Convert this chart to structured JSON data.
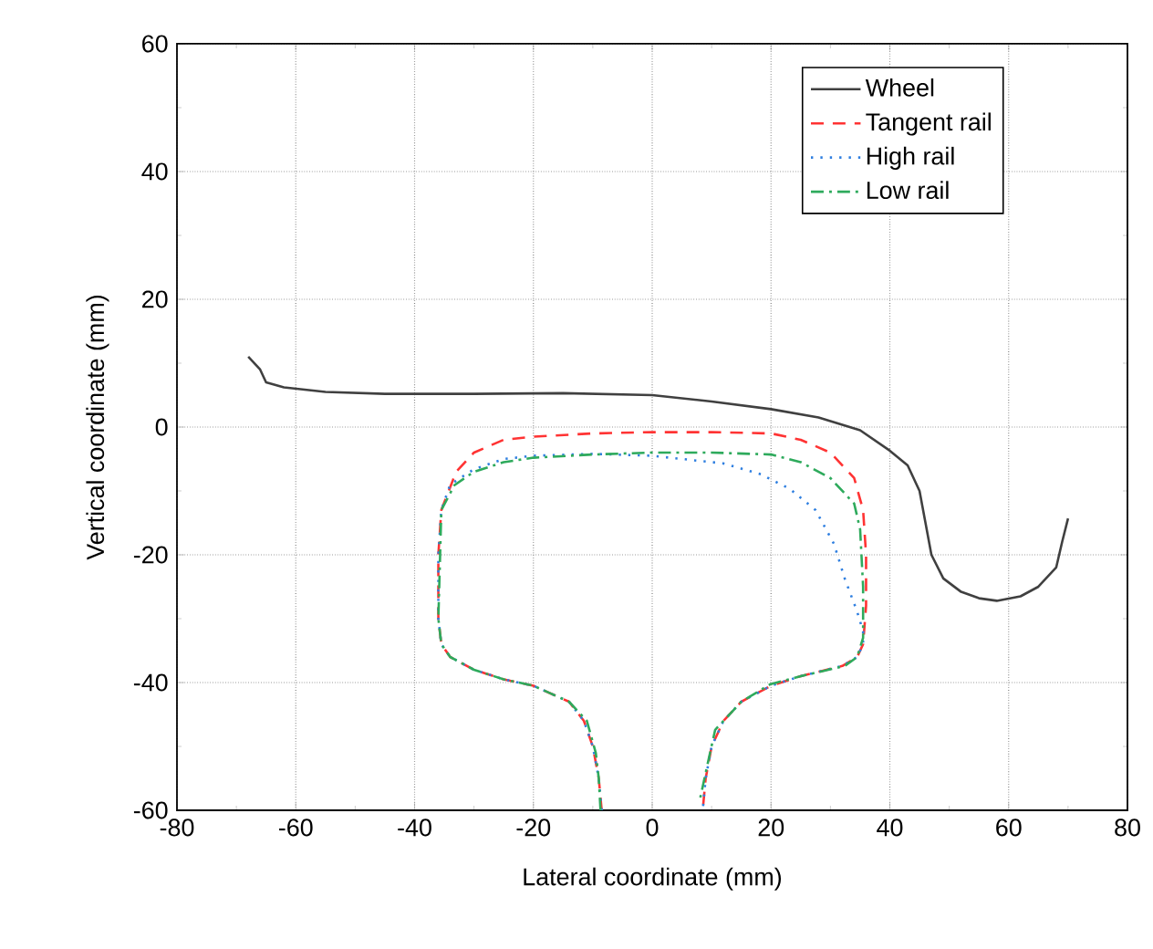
{
  "chart_data": {
    "type": "line",
    "xlabel": "Lateral coordinate (mm)",
    "ylabel": "Vertical coordinate (mm)",
    "xlim": [
      -80,
      80
    ],
    "ylim": [
      -60,
      60
    ],
    "xticks": [
      -80,
      -60,
      -40,
      -20,
      0,
      20,
      40,
      60,
      80
    ],
    "yticks": [
      -60,
      -40,
      -20,
      0,
      20,
      40,
      60
    ],
    "grid": true,
    "legend": "top right",
    "marker": "none",
    "series": [
      {
        "name": "Wheel",
        "color": "#404040",
        "line_style": "solid",
        "x": [
          -68,
          -66,
          -65,
          -62,
          -55,
          -45,
          -30,
          -15,
          0,
          10,
          20,
          28,
          35,
          40,
          43,
          45,
          46,
          47,
          49,
          52,
          55,
          58,
          62,
          65,
          68,
          69,
          70
        ],
        "values": [
          11,
          9,
          7,
          6.2,
          5.5,
          5.2,
          5.2,
          5.3,
          5,
          4,
          2.8,
          1.5,
          -0.5,
          -3.7,
          -6,
          -10,
          -15,
          -20,
          -23.7,
          -25.8,
          -26.8,
          -27.2,
          -26.5,
          -25,
          -22,
          -18,
          -14.3
        ]
      },
      {
        "name": "Tangent rail",
        "color": "#ff3333",
        "line_style": "dashed",
        "x": [
          -8.5,
          -9,
          -10,
          -11.5,
          -14,
          -20,
          -25,
          -30,
          -34,
          -35.5,
          -36,
          -36,
          -35.5,
          -33,
          -30,
          -25,
          -20,
          -10,
          0,
          10,
          20,
          25,
          30,
          34,
          35.5,
          36,
          36,
          35.5,
          34.5,
          32,
          25,
          20,
          15,
          12,
          10,
          9,
          8.5
        ],
        "values": [
          -60,
          -55,
          -50,
          -46,
          -43,
          -40.5,
          -39.5,
          -38,
          -36,
          -34,
          -30,
          -20,
          -13,
          -7,
          -4,
          -2,
          -1.5,
          -1,
          -0.8,
          -0.8,
          -1,
          -2,
          -4,
          -8,
          -13,
          -20,
          -28,
          -34,
          -36,
          -37.4,
          -39,
          -40.5,
          -43,
          -46,
          -50,
          -55,
          -60
        ]
      },
      {
        "name": "High rail",
        "color": "#2f7fe0",
        "line_style": "dotted",
        "x": [
          -8.5,
          -9,
          -10,
          -11.5,
          -14,
          -20,
          -25,
          -30,
          -34,
          -35.5,
          -36,
          -36,
          -35.5,
          -34,
          -30,
          -25,
          -20,
          -10,
          0,
          5,
          12,
          18.3,
          23.2,
          27.5,
          30.6,
          32.4,
          34.5,
          35.5,
          35.5,
          34.5,
          32,
          25,
          20,
          15,
          12,
          10,
          9,
          8.5
        ],
        "values": [
          -60,
          -55,
          -50,
          -46,
          -43,
          -40.5,
          -39.5,
          -38,
          -36,
          -34,
          -30,
          -20,
          -13,
          -9,
          -6.6,
          -5,
          -4.5,
          -4.2,
          -4.5,
          -5,
          -5.7,
          -7.4,
          -9.7,
          -13,
          -18.3,
          -23.7,
          -28.9,
          -32,
          -34,
          -36,
          -37.4,
          -39,
          -40.5,
          -43,
          -46,
          -50,
          -55,
          -60
        ]
      },
      {
        "name": "Low rail",
        "color": "#2eaa5c",
        "line_style": "dashdot",
        "x": [
          -8.7,
          -9,
          -9.5,
          -11,
          -14,
          -20,
          -25,
          -30,
          -34,
          -35.5,
          -36,
          -35.7,
          -35.5,
          -33.3,
          -30,
          -25,
          -20,
          -10,
          0,
          10,
          20,
          25,
          30,
          34,
          35,
          35.5,
          35.5,
          34.5,
          32.4,
          25,
          19.8,
          15,
          10.6,
          9.5,
          8.1
        ],
        "values": [
          -60,
          -55,
          -51,
          -46,
          -43,
          -40.5,
          -39.5,
          -38,
          -36,
          -34,
          -30,
          -20,
          -13,
          -9.1,
          -7,
          -5.5,
          -4.8,
          -4.3,
          -4,
          -4,
          -4.3,
          -5.5,
          -8,
          -12,
          -16,
          -25,
          -33,
          -36,
          -37.4,
          -39,
          -40.3,
          -43,
          -47.4,
          -52,
          -58
        ]
      }
    ]
  }
}
